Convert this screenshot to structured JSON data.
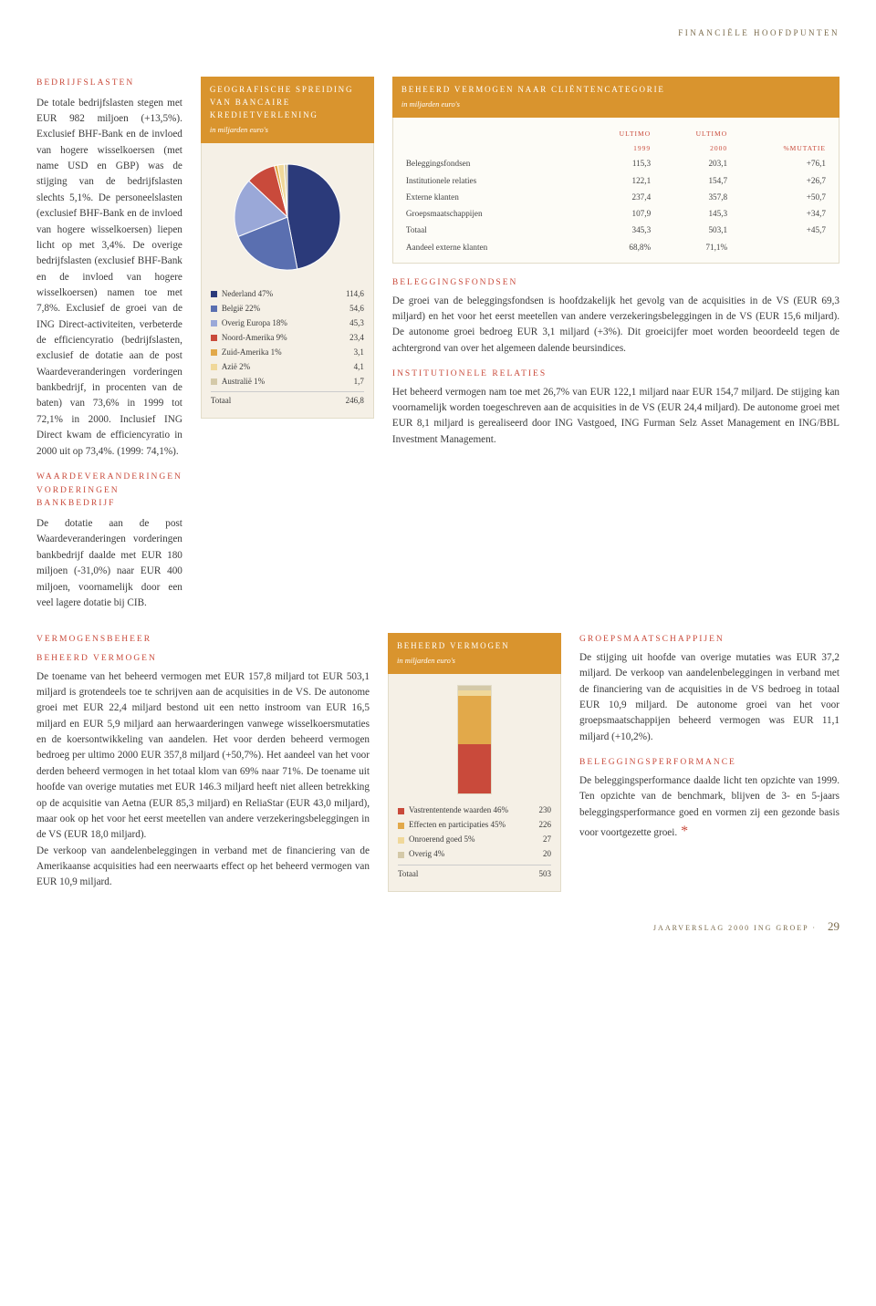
{
  "eyebrow": "FINANCIËLE HOOFDPUNTEN",
  "sections": {
    "bedrijfslasten": {
      "title": "BEDRIJFSLASTEN",
      "body": "De totale bedrijfslasten stegen met EUR 982 miljoen (+13,5%). Exclusief BHF-Bank en de invloed van hogere wisselkoersen (met name USD en GBP) was de stijging van de bedrijfslasten slechts 5,1%. De personeelslasten (exclusief BHF-Bank en de invloed van hogere wisselkoersen) liepen licht op met 3,4%. De overige bedrijfslasten (exclusief BHF-Bank en de invloed van hogere wisselkoersen) namen toe met 7,8%. Exclusief de groei van de ING Direct-activiteiten, verbeterde de efficiencyratio (bedrijfslasten, exclusief de dotatie aan de post Waardeveranderingen vorderingen bankbedrijf, in procenten van de baten) van 73,6% in 1999 tot 72,1% in 2000. Inclusief ING Direct kwam de efficiencyratio in 2000 uit op 73,4%. (1999: 74,1%)."
    },
    "waarde": {
      "title": "WAARDEVERANDERINGEN VORDERINGEN BANKBEDRIJF",
      "body": "De dotatie aan de post Waardeveranderingen vorderingen bankbedrijf daalde met EUR 180 miljoen (-31,0%) naar EUR 400 miljoen, voornamelijk door een veel lagere dotatie bij CIB."
    },
    "beleggingsfondsen": {
      "title": "BELEGGINGSFONDSEN",
      "body": "De groei van de beleggingsfondsen is hoofdzakelijk het gevolg van de acquisities in de VS (EUR 69,3 miljard) en het voor het eerst meetellen van andere verzekeringsbeleggingen in de VS (EUR 15,6 miljard). De autonome groei bedroeg EUR 3,1 miljard (+3%). Dit groeicijfer moet worden beoordeeld tegen de achtergrond van over het algemeen dalende beursindices."
    },
    "institutionele": {
      "title": "INSTITUTIONELE RELATIES",
      "body": "Het beheerd vermogen nam toe met 26,7% van EUR 122,1 miljard naar EUR 154,7 miljard. De stijging kan voornamelijk worden toegeschreven aan de acquisities in de VS (EUR 24,4 miljard). De autonome groei met EUR 8,1 miljard is gerealiseerd door ING Vastgoed, ING Furman Selz Asset Management en ING/BBL Investment Management."
    },
    "vermogensbeheer": {
      "title": "VERMOGENSBEHEER",
      "sub": "BEHEERD VERMOGEN",
      "body": "De toename van het beheerd vermogen met EUR 157,8 miljard tot EUR 503,1 miljard is grotendeels toe te schrijven aan de acquisities in de VS. De autonome groei met EUR 22,4 miljard bestond uit een netto instroom van EUR 16,5 miljard en EUR 5,9 miljard aan herwaarderingen vanwege wisselkoersmutaties en de koersontwikkeling van aandelen. Het voor derden beheerd vermogen bedroeg per ultimo 2000 EUR 357,8 miljard (+50,7%). Het aandeel van het voor derden beheerd vermogen in het totaal klom van 69% naar 71%. De toename uit hoofde van overige mutaties met EUR 146.3 miljard heeft niet alleen betrekking op de acquisitie van Aetna (EUR 85,3 miljard) en ReliaStar (EUR 43,0 miljard), maar ook op het voor het eerst meetellen van andere verzekeringsbeleggingen in de VS (EUR 18,0 miljard).\nDe verkoop van aandelenbeleggingen in verband met de financiering van de Amerikaanse acquisities had een neerwaarts effect op het beheerd vermogen van EUR 10,9 miljard."
    },
    "groeps": {
      "title": "GROEPSMAATSCHAPPIJEN",
      "body": "De stijging uit hoofde van overige mutaties was EUR 37,2 miljard. De verkoop van aandelenbeleggingen in verband met de financiering van de acquisities in de VS bedroeg in totaal EUR 10,9 miljard. De autonome groei van het voor groepsmaatschappijen beheerd vermogen was EUR 11,1 miljard (+10,2%)."
    },
    "perf": {
      "title": "BELEGGINGSPERFORMANCE",
      "body": "De beleggingsperformance daalde licht ten opzichte van 1999. Ten opzichte van de benchmark, blijven de 3- en 5-jaars beleggingsperformance goed en vormen zij een gezonde basis voor voortgezette groei."
    }
  },
  "pie_chart": {
    "title": "GEOGRAFISCHE SPREIDING VAN BANCAIRE KREDIETVERLENING",
    "sub": "in miljarden euro's",
    "rows": [
      {
        "label": "Nederland 47%",
        "val": "114,6",
        "color": "#2b3a7a",
        "pct": 47
      },
      {
        "label": "België 22%",
        "val": "54,6",
        "color": "#5a6fb0",
        "pct": 22
      },
      {
        "label": "Overig Europa 18%",
        "val": "45,3",
        "color": "#9aa8d8",
        "pct": 18
      },
      {
        "label": "Noord-Amerika 9%",
        "val": "23,4",
        "color": "#c94a3b",
        "pct": 9
      },
      {
        "label": "Zuid-Amerika 1%",
        "val": "3,1",
        "color": "#e2a94a",
        "pct": 1
      },
      {
        "label": "Azië 2%",
        "val": "4,1",
        "color": "#f0d89a",
        "pct": 2
      },
      {
        "label": "Australië 1%",
        "val": "1,7",
        "color": "#d4c9a8",
        "pct": 1
      }
    ],
    "total_label": "Totaal",
    "total_val": "246,8"
  },
  "client_table": {
    "title": "BEHEERD VERMOGEN NAAR CLIËNTENCATEGORIE",
    "sub": "in miljarden euro's",
    "head": [
      "",
      "ULTIMO",
      "ULTIMO",
      ""
    ],
    "head2": [
      "",
      "1999",
      "2000",
      "%MUTATIE"
    ],
    "rows": [
      [
        "Beleggingsfondsen",
        "115,3",
        "203,1",
        "+76,1"
      ],
      [
        "Institutionele relaties",
        "122,1",
        "154,7",
        "+26,7"
      ],
      [
        "Externe klanten",
        "237,4",
        "357,8",
        "+50,7"
      ],
      [
        "Groepsmaatschappijen",
        "107,9",
        "145,3",
        "+34,7"
      ],
      [
        "Totaal",
        "345,3",
        "503,1",
        "+45,7"
      ],
      [
        "Aandeel externe klanten",
        "68,8%",
        "71,1%",
        ""
      ]
    ]
  },
  "bar_chart": {
    "title": "BEHEERD VERMOGEN",
    "sub": "in miljarden euro's",
    "rows": [
      {
        "label": "Vastrententende waarden 46%",
        "val": "230",
        "color": "#c94a3b",
        "pct": 46
      },
      {
        "label": "Effecten en participaties 45%",
        "val": "226",
        "color": "#e2a94a",
        "pct": 45
      },
      {
        "label": "Onroerend goed 5%",
        "val": "27",
        "color": "#f0d89a",
        "pct": 5
      },
      {
        "label": "Overig 4%",
        "val": "20",
        "color": "#d4c9a8",
        "pct": 4
      }
    ],
    "total_label": "Totaal",
    "total_val": "503"
  },
  "footer": {
    "text": "JAARVERSLAG 2000 ING GROEP",
    "page": "29"
  }
}
